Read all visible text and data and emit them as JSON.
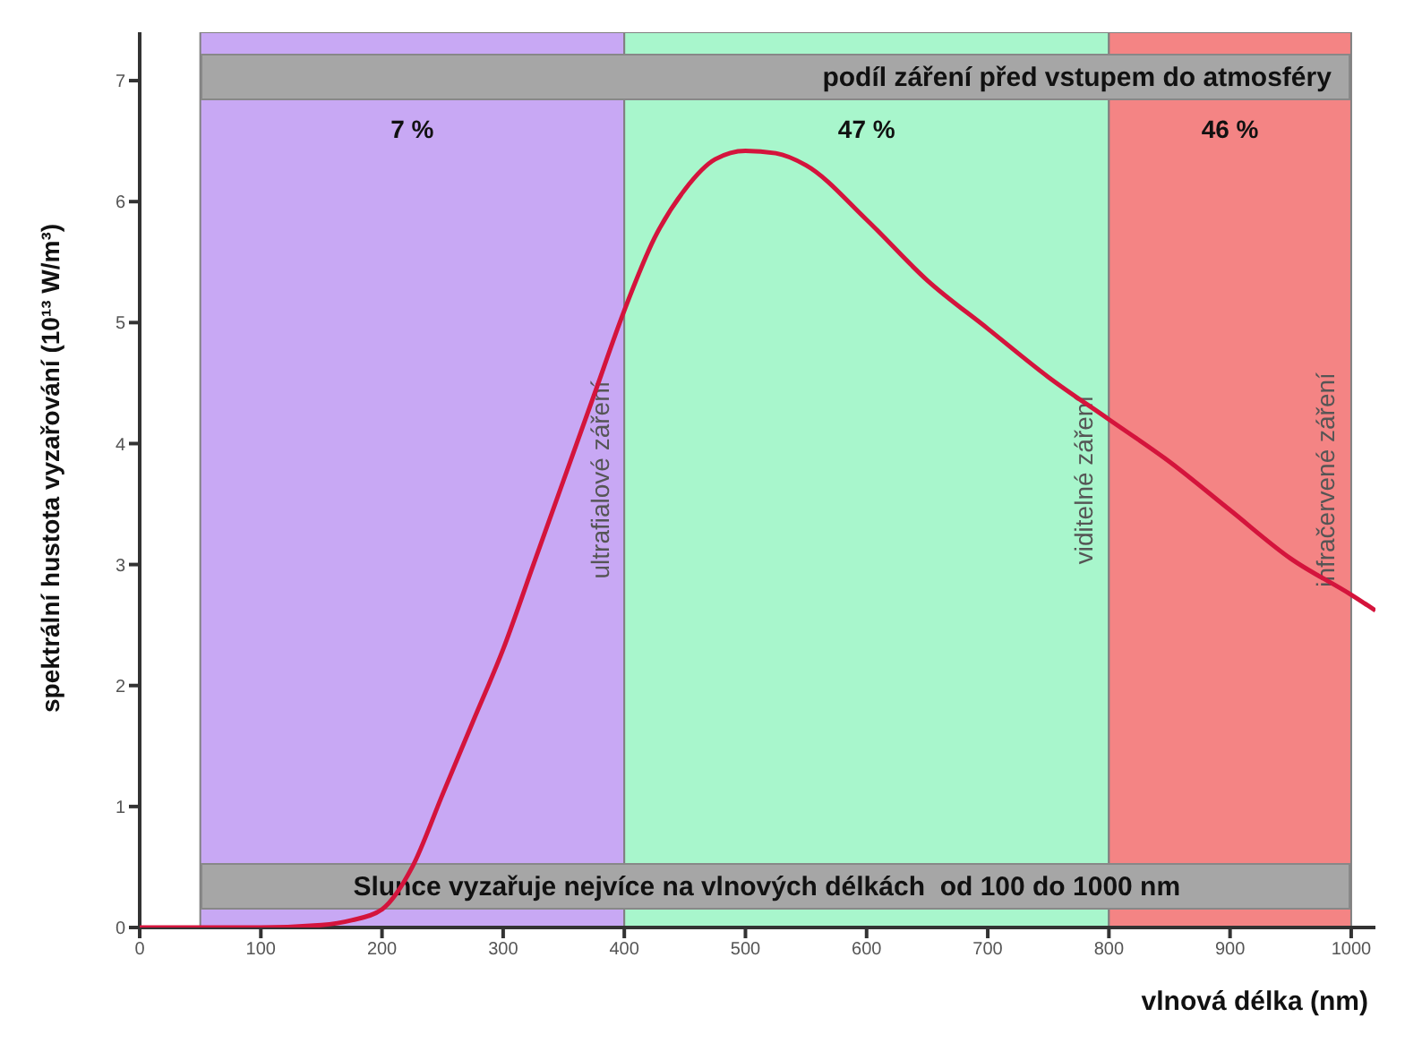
{
  "chart_data": {
    "type": "line",
    "xlabel": "vlnová délka (nm)",
    "ylabel": "spektrální hustota vyzařování (10¹³ W/m³)",
    "x": [
      0,
      100,
      150,
      175,
      200,
      225,
      250,
      275,
      300,
      325,
      350,
      375,
      400,
      425,
      450,
      475,
      500,
      525,
      550,
      600,
      650,
      700,
      750,
      800,
      850,
      900,
      950,
      1000,
      1020
    ],
    "series": [
      {
        "color": "#d4143c",
        "values": [
          0,
          0,
          0.02,
          0.06,
          0.15,
          0.5,
          1.1,
          1.7,
          2.3,
          3.0,
          3.7,
          4.4,
          5.1,
          5.7,
          6.1,
          6.35,
          6.42,
          6.4,
          6.3,
          5.85,
          5.35,
          4.95,
          4.55,
          4.2,
          3.85,
          3.45,
          3.05,
          2.75,
          2.62
        ]
      }
    ],
    "xlim": [
      0,
      1020
    ],
    "ylim": [
      0,
      7.4
    ],
    "xticks": [
      0,
      100,
      200,
      300,
      400,
      500,
      600,
      700,
      800,
      900,
      1000
    ],
    "yticks": [
      0,
      1,
      2,
      3,
      4,
      5,
      6,
      7
    ],
    "grid": false,
    "marker": "none",
    "line_style": "solid",
    "bands": [
      {
        "axis": "x",
        "from": 50,
        "to": 400,
        "label": "7 %",
        "color": "#c8a8f4"
      },
      {
        "axis": "x",
        "from": 400,
        "to": 800,
        "label": "47 %",
        "color": "#a8f6cc"
      },
      {
        "axis": "x",
        "from": 800,
        "to": 1000,
        "label": "46 %",
        "color": "#f48484"
      }
    ],
    "annotations": [
      "podíl záření před vstupem do atmosféry",
      "Slunce vyzařuje nejvíce na vlnových délkách  od 100 do 1000 nm",
      "ultrafialové záření",
      "viditelné záření",
      "infračervené záření"
    ]
  }
}
